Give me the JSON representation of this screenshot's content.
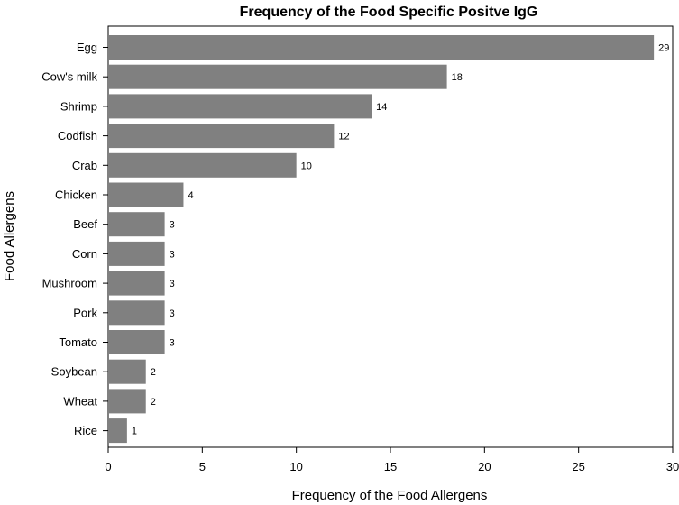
{
  "chart_data": {
    "type": "bar",
    "orientation": "horizontal",
    "title": "Frequency of the Food Specific Positve IgG",
    "xlabel": "Frequency of the Food Allergens",
    "ylabel": "Food Allergens",
    "categories": [
      "Egg",
      "Cow's milk",
      "Shrimp",
      "Codfish",
      "Crab",
      "Chicken",
      "Beef",
      "Corn",
      "Mushroom",
      "Pork",
      "Tomato",
      "Soybean",
      "Wheat",
      "Rice"
    ],
    "values": [
      29,
      18,
      14,
      12,
      10,
      4,
      3,
      3,
      3,
      3,
      3,
      2,
      2,
      1
    ],
    "data_labels": [
      "29",
      "18",
      "14",
      "12",
      "10",
      "4",
      "3",
      "3",
      "3",
      "3",
      "3",
      "2",
      "2",
      "1"
    ],
    "xlim": [
      0,
      30
    ],
    "xticks": [
      0,
      5,
      10,
      15,
      20,
      25,
      30
    ],
    "xtick_labels": [
      "0",
      "5",
      "10",
      "15",
      "20",
      "25",
      "30"
    ],
    "bar_color": "#808080",
    "grid": false,
    "legend": "none"
  }
}
